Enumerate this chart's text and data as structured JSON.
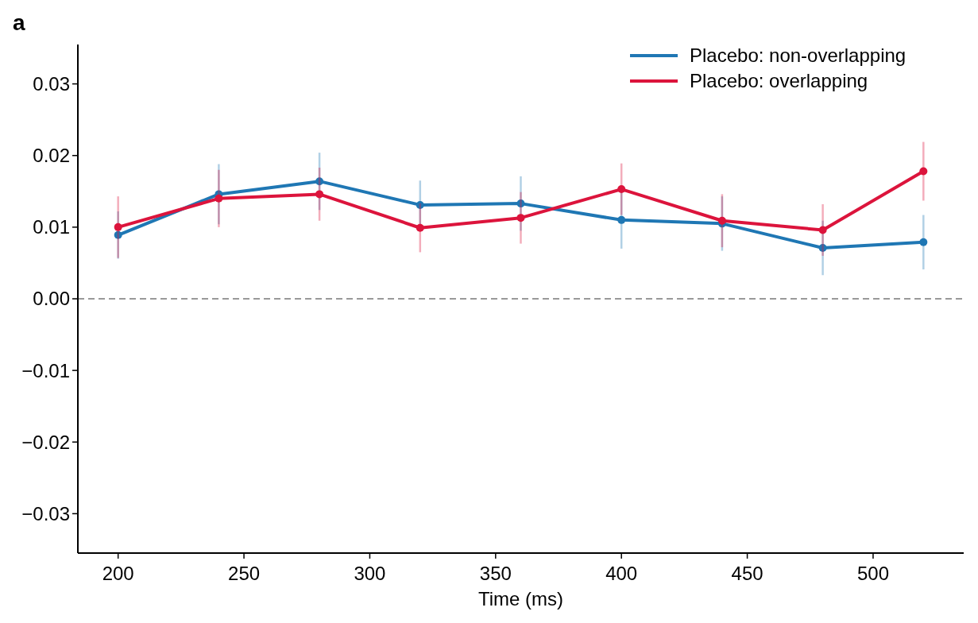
{
  "chart_data": {
    "type": "line",
    "xlabel": "Time (ms)",
    "annotations": [
      "a"
    ],
    "x": [
      200,
      240,
      280,
      320,
      360,
      400,
      440,
      480,
      520
    ],
    "series": [
      {
        "name": "Placebo: non-overlapping",
        "color": "#1f77b4",
        "values": [
          0.0089,
          0.0146,
          0.0164,
          0.0131,
          0.0133,
          0.011,
          0.0105,
          0.0071,
          0.0079
        ],
        "errors": [
          0.0033,
          0.0042,
          0.004,
          0.0034,
          0.0038,
          0.004,
          0.0038,
          0.0038,
          0.0038
        ]
      },
      {
        "name": "Placebo: overlapping",
        "color": "#dc143c",
        "values": [
          0.01,
          0.014,
          0.0146,
          0.0099,
          0.0113,
          0.0153,
          0.0109,
          0.0096,
          0.0178
        ],
        "errors": [
          0.0043,
          0.004,
          0.0037,
          0.0034,
          0.0036,
          0.0036,
          0.0037,
          0.0036,
          0.0041
        ]
      }
    ],
    "xlim": [
      184,
      536
    ],
    "xticks": [
      200,
      250,
      300,
      350,
      400,
      450,
      500
    ],
    "ylim": [
      -0.0355,
      0.0355
    ],
    "yticks": [
      {
        "value": -0.03,
        "label": "−0.03"
      },
      {
        "value": -0.02,
        "label": "−0.02"
      },
      {
        "value": -0.01,
        "label": "−0.01"
      },
      {
        "value": 0,
        "label": "0.00"
      },
      {
        "value": 0.01,
        "label": "0.01"
      },
      {
        "value": 0.02,
        "label": "0.02"
      },
      {
        "value": 0.03,
        "label": "0.03"
      }
    ],
    "ref_lines": [
      {
        "axis": "y",
        "value": 0,
        "color": "#999999",
        "line_style": "dashed"
      }
    ],
    "legend": "top right",
    "marker": "circle",
    "line_style": "solid",
    "grid": false
  }
}
